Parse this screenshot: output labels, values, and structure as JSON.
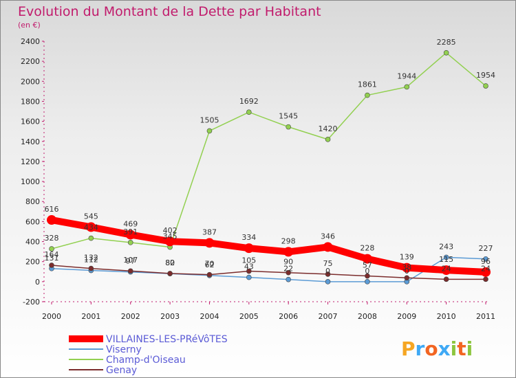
{
  "chart_data": {
    "type": "line",
    "title": "Evolution du Montant de la Dette par Habitant",
    "subtitle": "(en €)",
    "categories": [
      "2000",
      "2001",
      "2002",
      "2003",
      "2004",
      "2005",
      "2006",
      "2007",
      "2008",
      "2009",
      "2010",
      "2011"
    ],
    "ylim": [
      -200,
      2400
    ],
    "yticks": [
      -200,
      0,
      200,
      400,
      600,
      800,
      1000,
      1200,
      1400,
      1600,
      1800,
      2000,
      2200,
      2400
    ],
    "grid": false,
    "legend_position": "bottom-left",
    "series": [
      {
        "name": "VILLAINES-LES-PRéVôTES",
        "color": "#ff0000",
        "values": [
          616,
          545,
          469,
          402,
          387,
          334,
          298,
          346,
          228,
          139,
          115,
          96
        ],
        "labels": [
          "616",
          "545",
          "469",
          "402",
          "387",
          "334",
          "298",
          "346",
          "228",
          "139",
          "115",
          "96"
        ]
      },
      {
        "name": "Viserny",
        "color": "#5b9bd5",
        "values": [
          131,
          112,
          97,
          80,
          62,
          43,
          22,
          0,
          0,
          0,
          243,
          227
        ],
        "labels": [
          "131",
          "112",
          "97",
          "80",
          "62",
          "43",
          "22",
          "0",
          "0",
          "0",
          "243",
          "227"
        ]
      },
      {
        "name": "Champ-d'Oiseau",
        "color": "#92d050",
        "values": [
          328,
          434,
          391,
          345,
          1505,
          1692,
          1545,
          1420,
          1861,
          1944,
          2285,
          1954
        ],
        "labels": [
          "328",
          "434",
          "391",
          "345",
          "1505",
          "1692",
          "1545",
          "1420",
          "1861",
          "1944",
          "2285",
          "1954"
        ]
      },
      {
        "name": "Genay",
        "color": "#7b2c2c",
        "values": [
          164,
          132,
          107,
          82,
          70,
          105,
          90,
          75,
          57,
          38,
          24,
          24
        ],
        "labels": [
          "164",
          "132",
          "107",
          "82",
          "70",
          "105",
          "90",
          "75",
          "57",
          "38",
          "24",
          "24"
        ]
      }
    ]
  },
  "logo": {
    "text": "Proxiti"
  }
}
